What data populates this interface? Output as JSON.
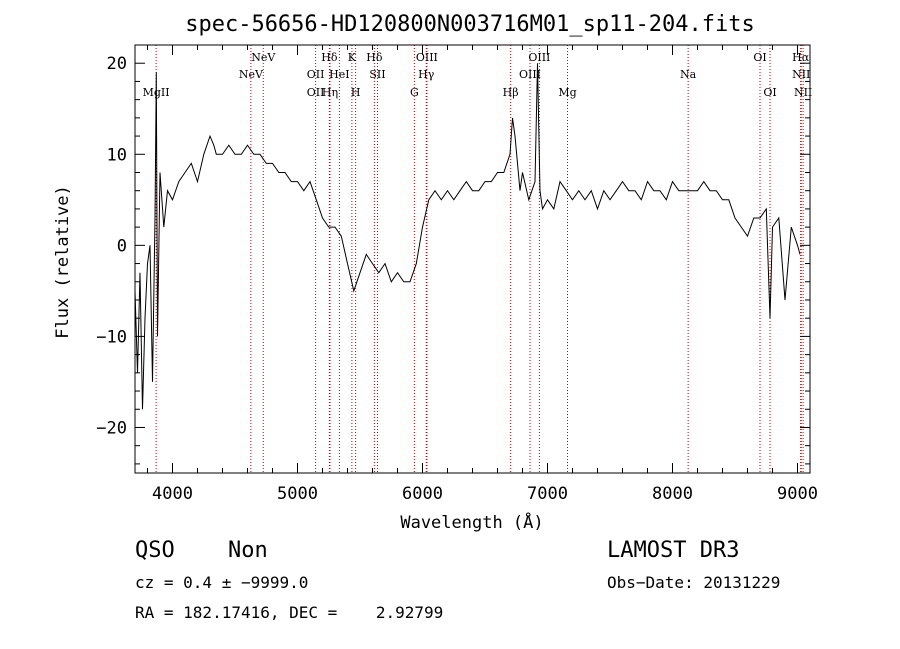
{
  "chart_data": {
    "type": "line",
    "title": "spec-56656-HD120800N003716M01_sp11-204.fits",
    "xlabel": "Wavelength (Å)",
    "ylabel": "Flux (relative)",
    "xlim": [
      3700,
      9100
    ],
    "ylim": [
      -25,
      22
    ],
    "x_ticks": [
      4000,
      5000,
      6000,
      7000,
      8000,
      9000
    ],
    "y_ticks": [
      -20,
      -10,
      0,
      10,
      20
    ],
    "x_tick_labels": [
      "4000",
      "5000",
      "6000",
      "7000",
      "8000",
      "9000"
    ],
    "y_tick_labels": [
      "−20",
      "−10",
      "0",
      "10",
      "20"
    ],
    "grid": false,
    "legend": "none",
    "series": [
      {
        "x": [
          3700,
          3720,
          3740,
          3760,
          3780,
          3800,
          3820,
          3840,
          3860,
          3870,
          3880,
          3900,
          3930,
          3960,
          4000,
          4050,
          4100,
          4150,
          4200,
          4250,
          4300,
          4330,
          4350,
          4400,
          4450,
          4500,
          4550,
          4600,
          4650,
          4700,
          4750,
          4800,
          4850,
          4900,
          4950,
          5000,
          5050,
          5100,
          5150,
          5200,
          5250,
          5300,
          5350,
          5400,
          5450,
          5500,
          5550,
          5600,
          5650,
          5700,
          5750,
          5800,
          5850,
          5900,
          5950,
          6000,
          6050,
          6100,
          6150,
          6200,
          6250,
          6300,
          6350,
          6400,
          6450,
          6500,
          6550,
          6600,
          6650,
          6700,
          6720,
          6740,
          6760,
          6780,
          6800,
          6850,
          6900,
          6920,
          6940,
          6960,
          7000,
          7050,
          7100,
          7150,
          7200,
          7250,
          7300,
          7350,
          7400,
          7450,
          7500,
          7550,
          7600,
          7650,
          7700,
          7750,
          7800,
          7850,
          7900,
          7950,
          8000,
          8050,
          8100,
          8150,
          8200,
          8250,
          8300,
          8350,
          8400,
          8450,
          8500,
          8550,
          8600,
          8650,
          8700,
          8750,
          8780,
          8800,
          8850,
          8900,
          8950,
          9000,
          9020
        ],
        "y": [
          -5,
          -14,
          -3,
          -18,
          -8,
          -2,
          0,
          -15,
          3,
          19,
          -10,
          8,
          2,
          6,
          5,
          7,
          8,
          9,
          7,
          10,
          12,
          11,
          10,
          10,
          11,
          10,
          10,
          11,
          10,
          10,
          9,
          9,
          8,
          8,
          7,
          7,
          6,
          7,
          5,
          3,
          2,
          2,
          1,
          -2,
          -5,
          -3,
          -1,
          -2,
          -3,
          -2,
          -4,
          -3,
          -4,
          -4,
          -2,
          2,
          5,
          6,
          5,
          6,
          5,
          6,
          7,
          6,
          6,
          7,
          7,
          8,
          8,
          10,
          14,
          12,
          9,
          6,
          8,
          5,
          7,
          20,
          6,
          4,
          5,
          4,
          7,
          6,
          5,
          6,
          5,
          6,
          4,
          6,
          5,
          6,
          7,
          6,
          6,
          5,
          7,
          6,
          6,
          5,
          7,
          6,
          6,
          6,
          6,
          7,
          6,
          6,
          5,
          5,
          3,
          2,
          1,
          3,
          3,
          4,
          -8,
          2,
          3,
          -6,
          2,
          0,
          -1
        ]
      }
    ],
    "lines": [
      {
        "x": 3869,
        "row": 3,
        "label": "MgII"
      },
      {
        "x": 4627,
        "row": 2,
        "label": "NeV"
      },
      {
        "x": 4726,
        "row": 1,
        "label": "NeV"
      },
      {
        "x": 5145,
        "row": 2,
        "label": "OII"
      },
      {
        "x": 5145,
        "row": 3,
        "label": "OII"
      },
      {
        "x": 5255,
        "row": 1,
        "label": "Hδ"
      },
      {
        "x": 5260,
        "row": 3,
        "label": "Hη"
      },
      {
        "x": 5335,
        "row": 2,
        "label": "HeI"
      },
      {
        "x": 5435,
        "row": 1,
        "label": "K"
      },
      {
        "x": 5465,
        "row": 3,
        "label": "H"
      },
      {
        "x": 5615,
        "row": 1,
        "label": "Hδ"
      },
      {
        "x": 5640,
        "row": 2,
        "label": "SII"
      },
      {
        "x": 5935,
        "row": 3,
        "label": "G"
      },
      {
        "x": 6030,
        "row": 2,
        "label": "Hγ"
      },
      {
        "x": 6035,
        "row": 1,
        "label": "OIII"
      },
      {
        "x": 6705,
        "row": 3,
        "label": "Hβ"
      },
      {
        "x": 6860,
        "row": 2,
        "label": "OIII"
      },
      {
        "x": 6935,
        "row": 1,
        "label": "OIII"
      },
      {
        "x": 7160,
        "row": 3,
        "label": "Mg"
      },
      {
        "x": 8125,
        "row": 2,
        "label": "Na"
      },
      {
        "x": 8700,
        "row": 1,
        "label": "OI"
      },
      {
        "x": 8780,
        "row": 3,
        "label": "OI"
      },
      {
        "x": 9025,
        "row": 1,
        "label": "Hα"
      },
      {
        "x": 9030,
        "row": 2,
        "label": "NII"
      },
      {
        "x": 9045,
        "row": 3,
        "label": "NII"
      }
    ]
  },
  "footer": {
    "class_label": "QSO",
    "subclass": "Non",
    "survey": "LAMOST DR3",
    "cz": "cz = 0.4 ± −9999.0",
    "obs_date": "Obs−Date: 20131229",
    "coords": "RA = 182.17416, DEC =    2.92799"
  },
  "colors": {
    "axis": "#000000",
    "spectrum": "#000000",
    "line_marker": "#cc0000"
  }
}
